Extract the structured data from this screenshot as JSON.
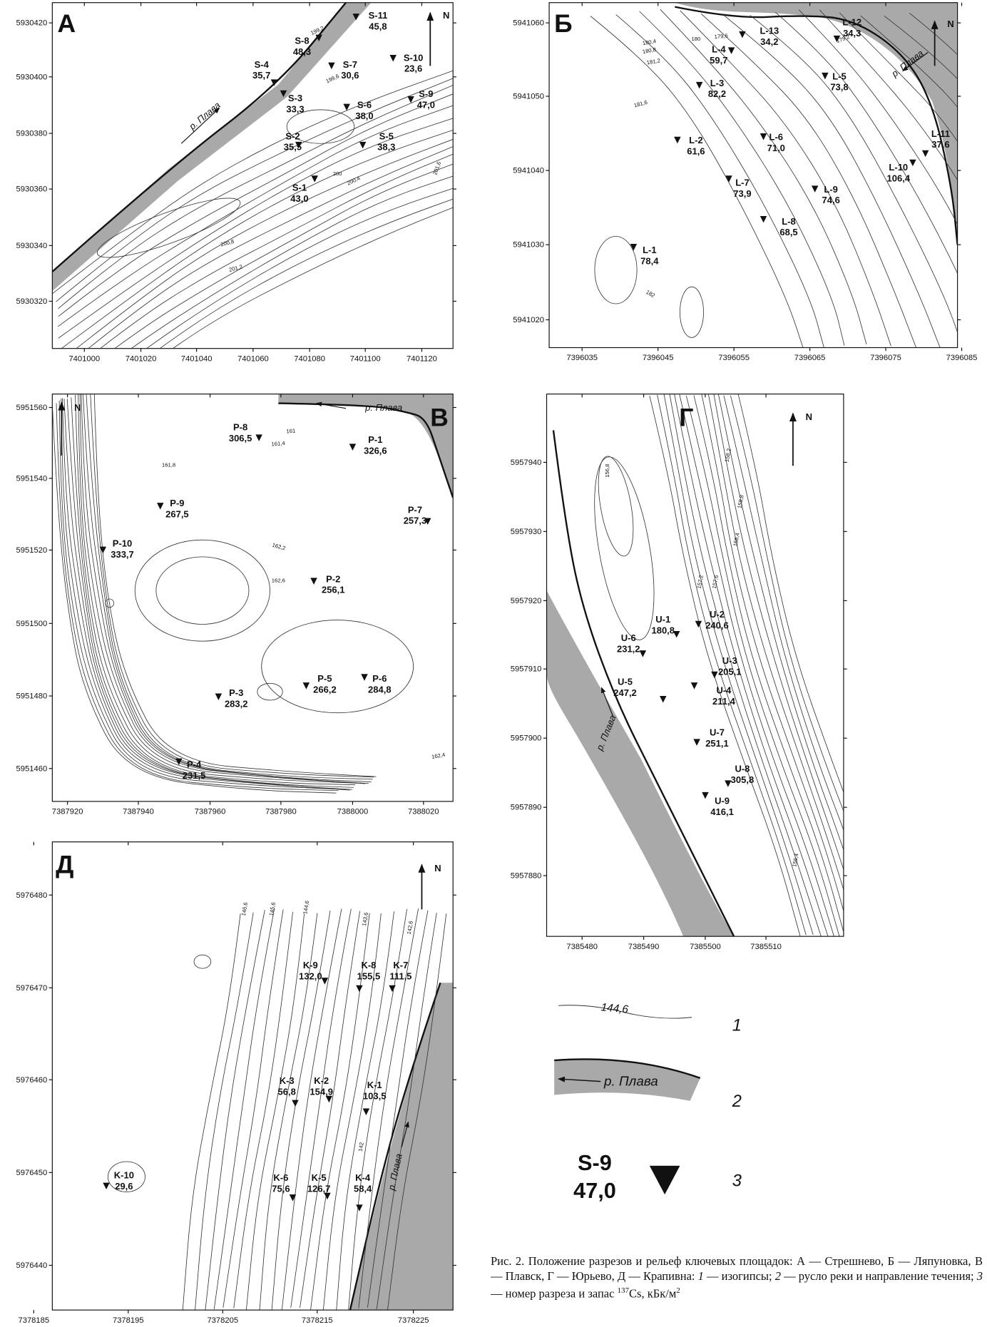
{
  "panels": [
    {
      "letter": "А",
      "north": "N",
      "river": "р. Плава",
      "xticks": [
        7401000,
        7401020,
        7401040,
        7401060,
        7401080,
        7401100,
        7401120
      ],
      "yticks": [
        5930420,
        5930400,
        5930380,
        5930360,
        5930340,
        5930320
      ],
      "points": [
        {
          "id": "S-8",
          "value": "48,3"
        },
        {
          "id": "S-11",
          "value": "45,8"
        },
        {
          "id": "S-10",
          "value": "23,6"
        },
        {
          "id": "S-4",
          "value": "35,7"
        },
        {
          "id": "S-7",
          "value": "30,6"
        },
        {
          "id": "S-3",
          "value": "33,3"
        },
        {
          "id": "S-6",
          "value": "38,0"
        },
        {
          "id": "S-9",
          "value": "47,0"
        },
        {
          "id": "S-2",
          "value": "35,5"
        },
        {
          "id": "S-5",
          "value": "38,3"
        },
        {
          "id": "S-1",
          "value": "43,0"
        }
      ],
      "contour_labels": [
        "199,2",
        "199,6",
        "200",
        "200,4",
        "200,8",
        "201,2",
        "201,6"
      ]
    },
    {
      "letter": "Б",
      "north": "N",
      "river": "р. Плава",
      "xticks": [
        7396035,
        7396045,
        7396055,
        7396065,
        7396075,
        7396085
      ],
      "yticks": [
        5941060,
        5941050,
        5941040,
        5941030,
        5941020
      ],
      "points": [
        {
          "id": "L-13",
          "value": "34,2"
        },
        {
          "id": "L-12",
          "value": "34,3"
        },
        {
          "id": "L-4",
          "value": "59,7"
        },
        {
          "id": "L-3",
          "value": "82,2"
        },
        {
          "id": "L-5",
          "value": "73,8"
        },
        {
          "id": "L-2",
          "value": "61,6"
        },
        {
          "id": "L-6",
          "value": "71,0"
        },
        {
          "id": "L-11",
          "value": "37,6"
        },
        {
          "id": "L-10",
          "value": "106,4"
        },
        {
          "id": "L-7",
          "value": "73,9"
        },
        {
          "id": "L-9",
          "value": "74,6"
        },
        {
          "id": "L-8",
          "value": "68,5"
        },
        {
          "id": "L-1",
          "value": "78,4"
        }
      ],
      "contour_labels": [
        "180",
        "180,4",
        "180,8",
        "181,2",
        "181,6",
        "179,6",
        "179,2",
        "182"
      ]
    },
    {
      "letter": "В",
      "north": "N",
      "river": "р. Плава",
      "xticks": [
        7387920,
        7387940,
        7387960,
        7387980,
        7388000,
        7388020
      ],
      "yticks": [
        5951560,
        5951540,
        5951520,
        5951500,
        5951480,
        5951460
      ],
      "points": [
        {
          "id": "P-8",
          "value": "306,5"
        },
        {
          "id": "P-1",
          "value": "326,6"
        },
        {
          "id": "P-9",
          "value": "267,5"
        },
        {
          "id": "P-7",
          "value": "257,3"
        },
        {
          "id": "P-10",
          "value": "333,7"
        },
        {
          "id": "P-2",
          "value": "256,1"
        },
        {
          "id": "P-5",
          "value": "266,2"
        },
        {
          "id": "P-6",
          "value": "284,8"
        },
        {
          "id": "P-3",
          "value": "283,2"
        },
        {
          "id": "P-4",
          "value": "231,5"
        }
      ],
      "contour_labels": [
        "161",
        "161,4",
        "161,8",
        "162,2",
        "162,6",
        "162,4"
      ]
    },
    {
      "letter": "Г",
      "north": "N",
      "river": "р. Плава",
      "xticks": [
        7385480,
        7385490,
        7385500,
        7385510
      ],
      "yticks": [
        5957940,
        5957930,
        5957920,
        5957910,
        5957900,
        5957890,
        5957880
      ],
      "points": [
        {
          "id": "U-1",
          "value": "180,8"
        },
        {
          "id": "U-2",
          "value": "240,6"
        },
        {
          "id": "U-6",
          "value": "231,2"
        },
        {
          "id": "U-3",
          "value": "205,1"
        },
        {
          "id": "U-5",
          "value": "247,2"
        },
        {
          "id": "U-4",
          "value": "211,4"
        },
        {
          "id": "U-7",
          "value": "251,1"
        },
        {
          "id": "U-8",
          "value": "305,8"
        },
        {
          "id": "U-9",
          "value": "416,1"
        }
      ],
      "contour_labels": [
        "158,2",
        "158,8",
        "158,4",
        "157,6",
        "157,2",
        "156,8",
        "156,4"
      ]
    },
    {
      "letter": "Д",
      "north": "N",
      "river": "р. Плава",
      "xticks": [
        7378185,
        7378195,
        7378205,
        7378215,
        7378225
      ],
      "yticks": [
        5976480,
        5976470,
        5976460,
        5976450,
        5976440
      ],
      "points": [
        {
          "id": "K-9",
          "value": "132,0"
        },
        {
          "id": "K-8",
          "value": "155,5"
        },
        {
          "id": "K-7",
          "value": "111,5"
        },
        {
          "id": "K-3",
          "value": "56,8"
        },
        {
          "id": "K-2",
          "value": "154,9"
        },
        {
          "id": "K-1",
          "value": "103,5"
        },
        {
          "id": "K-10",
          "value": "29,6"
        },
        {
          "id": "K-6",
          "value": "75,6"
        },
        {
          "id": "K-5",
          "value": "126,7"
        },
        {
          "id": "K-4",
          "value": "58,4"
        }
      ],
      "contour_labels": [
        "146,6",
        "145,6",
        "144,6",
        "143,6",
        "142,6",
        "142"
      ]
    }
  ],
  "legend": {
    "contour_label": "144,6",
    "river": "р. Плава",
    "point_id": "S-9",
    "point_value": "47,0",
    "numbers": [
      "1",
      "2",
      "3"
    ]
  },
  "caption": [
    "Рис. 2. Положение разрезов и рельеф ключевых площадок: А — Стрешнево, Б — Ляпуновка, В — Плавск, Г — Юрьево, Д — Крапивна: ",
    "1",
    " — изогипсы; ",
    "2",
    " — русло реки и направление течения; ",
    "3",
    " — номер разреза и запас ",
    "137",
    "Cs, кБк/м",
    "2"
  ]
}
